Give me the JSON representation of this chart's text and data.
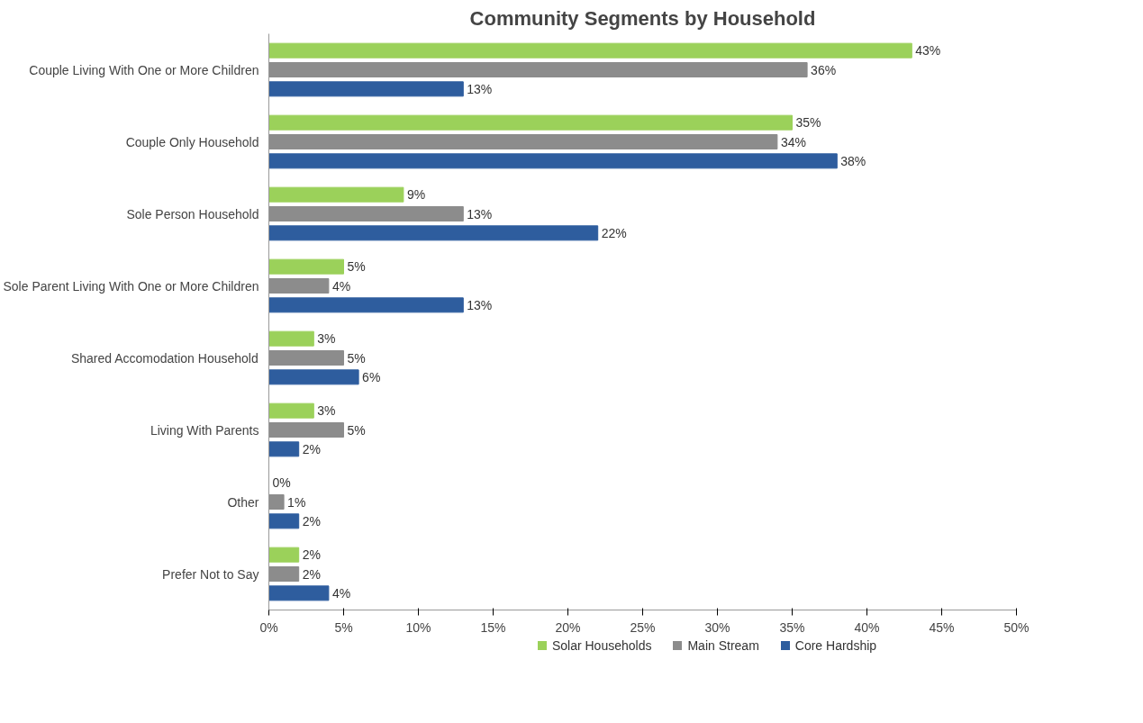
{
  "chart_data": {
    "type": "bar",
    "orientation": "horizontal",
    "title": "Community Segments by Household",
    "categories": [
      "Couple Living With One or More Children",
      "Couple Only Household",
      "Sole Person Household",
      "Sole Parent Living With One or More Children",
      "Shared Accomodation Household",
      "Living With Parents",
      "Other",
      "Prefer Not to Say"
    ],
    "series": [
      {
        "name": "Solar Households",
        "color": "#9bd15a",
        "values": [
          43,
          35,
          9,
          5,
          3,
          3,
          0,
          2
        ],
        "value_labels": [
          "43%",
          "35%",
          "9%",
          "5%",
          "3%",
          "3%",
          "0%",
          "2%"
        ]
      },
      {
        "name": "Main Stream",
        "color": "#8c8c8c",
        "values": [
          36,
          34,
          13,
          4,
          5,
          5,
          1,
          2
        ],
        "value_labels": [
          "36%",
          "34%",
          "13%",
          "4%",
          "5%",
          "5%",
          "1%",
          "2%"
        ]
      },
      {
        "name": "Core Hardship",
        "color": "#2e5d9e",
        "values": [
          13,
          38,
          22,
          13,
          6,
          2,
          2,
          4
        ],
        "value_labels": [
          "13%",
          "38%",
          "22%",
          "13%",
          "6%",
          "2%",
          "2%",
          "4%"
        ]
      }
    ],
    "xlim": [
      0,
      50
    ],
    "xticks": [
      {
        "value": 0,
        "label": "0%"
      },
      {
        "value": 5,
        "label": "5%"
      },
      {
        "value": 10,
        "label": "10%"
      },
      {
        "value": 15,
        "label": "15%"
      },
      {
        "value": 20,
        "label": "20%"
      },
      {
        "value": 25,
        "label": "25%"
      },
      {
        "value": 30,
        "label": "30%"
      },
      {
        "value": 35,
        "label": "35%"
      },
      {
        "value": 40,
        "label": "40%"
      },
      {
        "value": 45,
        "label": "45%"
      },
      {
        "value": 50,
        "label": "50%"
      }
    ],
    "grid": false,
    "legend": "bottom"
  }
}
